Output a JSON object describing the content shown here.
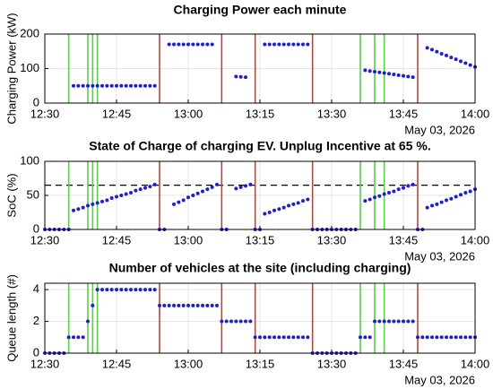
{
  "chart_data": [
    {
      "type": "scatter",
      "title": "Charging Power each minute",
      "ylabel": "Charging Power (kW)",
      "date_label": "May 03, 2026",
      "color": "#1f1fc8",
      "arrival_color": "#5ccf4a",
      "departure_color": "#b04a3a",
      "grid": true,
      "arrivals": [
        "12:35",
        "12:39",
        "12:40",
        "12:41",
        "13:36",
        "13:39",
        "13:41"
      ],
      "departures": [
        "12:54",
        "13:07",
        "13:14",
        "13:26",
        "13:48"
      ],
      "xlim": [
        "12:30",
        "14:00"
      ],
      "xticks": [
        "12:30",
        "12:45",
        "13:00",
        "13:15",
        "13:30",
        "13:45",
        "14:00"
      ],
      "ylim": [
        0,
        200
      ],
      "yticks": [
        0,
        100,
        200
      ],
      "x": [
        "12:36",
        "12:37",
        "12:38",
        "12:39",
        "12:40",
        "12:41",
        "12:42",
        "12:43",
        "12:44",
        "12:45",
        "12:46",
        "12:47",
        "12:48",
        "12:49",
        "12:50",
        "12:51",
        "12:52",
        "12:53",
        "12:56",
        "12:57",
        "12:58",
        "12:59",
        "13:00",
        "13:01",
        "13:02",
        "13:03",
        "13:04",
        "13:05",
        "13:10",
        "13:11",
        "13:12",
        "13:16",
        "13:17",
        "13:18",
        "13:19",
        "13:20",
        "13:21",
        "13:22",
        "13:23",
        "13:24",
        "13:25",
        "13:37",
        "13:38",
        "13:39",
        "13:40",
        "13:41",
        "13:42",
        "13:43",
        "13:44",
        "13:45",
        "13:46",
        "13:47",
        "13:50",
        "13:51",
        "13:52",
        "13:53",
        "13:54",
        "13:55",
        "13:56",
        "13:57",
        "13:58",
        "13:59",
        "14:00"
      ],
      "values": [
        50,
        50,
        50,
        50,
        50,
        50,
        50,
        50,
        50,
        50,
        50,
        50,
        50,
        50,
        50,
        50,
        50,
        50,
        170,
        170,
        170,
        170,
        170,
        170,
        170,
        170,
        170,
        170,
        77,
        76,
        75,
        170,
        170,
        170,
        170,
        170,
        170,
        170,
        170,
        170,
        170,
        95,
        93,
        91,
        89,
        87,
        85,
        83,
        81,
        79,
        77,
        75,
        160,
        155,
        149,
        143,
        138,
        132,
        127,
        121,
        116,
        110,
        105
      ]
    },
    {
      "type": "scatter",
      "title": "State of Charge of charging EV. Unplug Incentive at 65 %.",
      "ylabel": "SoC (%)",
      "date_label": "May 03, 2026",
      "color": "#1f1fc8",
      "arrival_color": "#5ccf4a",
      "departure_color": "#b04a3a",
      "grid": true,
      "threshold": 65,
      "arrivals": [
        "12:35",
        "12:39",
        "12:40",
        "12:41",
        "13:36",
        "13:39",
        "13:41"
      ],
      "departures": [
        "12:54",
        "13:07",
        "13:14",
        "13:26",
        "13:48"
      ],
      "xlim": [
        "12:30",
        "14:00"
      ],
      "xticks": [
        "12:30",
        "12:45",
        "13:00",
        "13:15",
        "13:30",
        "13:45",
        "14:00"
      ],
      "ylim": [
        0,
        100
      ],
      "yticks": [
        0,
        50,
        100
      ],
      "x": [
        "12:30",
        "12:31",
        "12:32",
        "12:33",
        "12:34",
        "12:35",
        "12:36",
        "12:37",
        "12:38",
        "12:39",
        "12:40",
        "12:41",
        "12:42",
        "12:43",
        "12:44",
        "12:45",
        "12:46",
        "12:47",
        "12:48",
        "12:49",
        "12:50",
        "12:51",
        "12:52",
        "12:53",
        "12:54",
        "12:55",
        "12:57",
        "12:58",
        "12:59",
        "13:00",
        "13:01",
        "13:02",
        "13:03",
        "13:04",
        "13:05",
        "13:06",
        "13:07",
        "13:08",
        "13:10",
        "13:11",
        "13:12",
        "13:13",
        "13:14",
        "13:15",
        "13:16",
        "13:17",
        "13:18",
        "13:19",
        "13:20",
        "13:21",
        "13:22",
        "13:23",
        "13:24",
        "13:25",
        "13:26",
        "13:27",
        "13:28",
        "13:29",
        "13:30",
        "13:31",
        "13:32",
        "13:33",
        "13:34",
        "13:35",
        "13:37",
        "13:38",
        "13:39",
        "13:40",
        "13:41",
        "13:42",
        "13:43",
        "13:44",
        "13:45",
        "13:46",
        "13:47",
        "13:48",
        "13:49",
        "13:50",
        "13:51",
        "13:52",
        "13:53",
        "13:54",
        "13:55",
        "13:56",
        "13:57",
        "13:58",
        "13:59",
        "14:00"
      ],
      "values": [
        0,
        0,
        0,
        0,
        0,
        0,
        28,
        30,
        32,
        35,
        37,
        39,
        41,
        43,
        46,
        48,
        50,
        52,
        54,
        57,
        59,
        61,
        63,
        66,
        0,
        0,
        37,
        40,
        43,
        47,
        50,
        53,
        56,
        59,
        62,
        66,
        0,
        0,
        60,
        62,
        64,
        66,
        0,
        0,
        23,
        25,
        28,
        30,
        32,
        35,
        37,
        39,
        42,
        44,
        0,
        0,
        0,
        0,
        0,
        0,
        0,
        0,
        0,
        0,
        42,
        44,
        47,
        49,
        52,
        54,
        56,
        59,
        61,
        64,
        66,
        0,
        0,
        32,
        35,
        37,
        40,
        43,
        45,
        48,
        51,
        54,
        56,
        59
      ]
    },
    {
      "type": "scatter",
      "title": "Number of vehicles at the site (including charging)",
      "ylabel": "Queue length (#)",
      "date_label": "May 03, 2026",
      "color": "#1f1fc8",
      "arrival_color": "#5ccf4a",
      "departure_color": "#b04a3a",
      "grid": true,
      "arrivals": [
        "12:35",
        "12:39",
        "12:40",
        "12:41",
        "13:36",
        "13:39",
        "13:41"
      ],
      "departures": [
        "12:54",
        "13:07",
        "13:14",
        "13:26",
        "13:48"
      ],
      "xlim": [
        "12:30",
        "14:00"
      ],
      "xticks": [
        "12:30",
        "12:45",
        "13:00",
        "13:15",
        "13:30",
        "13:45",
        "14:00"
      ],
      "ylim": [
        0,
        4.4
      ],
      "yticks": [
        0,
        2,
        4
      ],
      "x": [
        "12:30",
        "12:31",
        "12:32",
        "12:33",
        "12:34",
        "12:35",
        "12:36",
        "12:37",
        "12:38",
        "12:39",
        "12:40",
        "12:41",
        "12:42",
        "12:43",
        "12:44",
        "12:45",
        "12:46",
        "12:47",
        "12:48",
        "12:49",
        "12:50",
        "12:51",
        "12:52",
        "12:53",
        "12:54",
        "12:55",
        "12:56",
        "12:57",
        "12:58",
        "12:59",
        "13:00",
        "13:01",
        "13:02",
        "13:03",
        "13:04",
        "13:05",
        "13:06",
        "13:07",
        "13:08",
        "13:09",
        "13:10",
        "13:11",
        "13:12",
        "13:13",
        "13:14",
        "13:15",
        "13:16",
        "13:17",
        "13:18",
        "13:19",
        "13:20",
        "13:21",
        "13:22",
        "13:23",
        "13:24",
        "13:25",
        "13:26",
        "13:27",
        "13:28",
        "13:29",
        "13:30",
        "13:31",
        "13:32",
        "13:33",
        "13:34",
        "13:35",
        "13:36",
        "13:37",
        "13:38",
        "13:39",
        "13:40",
        "13:41",
        "13:42",
        "13:43",
        "13:44",
        "13:45",
        "13:46",
        "13:47",
        "13:48",
        "13:49",
        "13:50",
        "13:51",
        "13:52",
        "13:53",
        "13:54",
        "13:55",
        "13:56",
        "13:57",
        "13:58",
        "13:59",
        "14:00"
      ],
      "values": [
        0,
        0,
        0,
        0,
        0,
        1,
        1,
        1,
        1,
        2,
        3,
        4,
        4,
        4,
        4,
        4,
        4,
        4,
        4,
        4,
        4,
        4,
        4,
        4,
        3,
        3,
        3,
        3,
        3,
        3,
        3,
        3,
        3,
        3,
        3,
        3,
        3,
        2,
        2,
        2,
        2,
        2,
        2,
        2,
        1,
        1,
        1,
        1,
        1,
        1,
        1,
        1,
        1,
        1,
        1,
        1,
        0,
        0,
        0,
        0,
        0,
        0,
        0,
        0,
        0,
        0,
        1,
        1,
        1,
        2,
        2,
        2,
        2,
        2,
        2,
        2,
        2,
        2,
        1,
        1,
        1,
        1,
        1,
        1,
        1,
        1,
        1,
        1,
        1,
        1,
        1
      ]
    }
  ]
}
